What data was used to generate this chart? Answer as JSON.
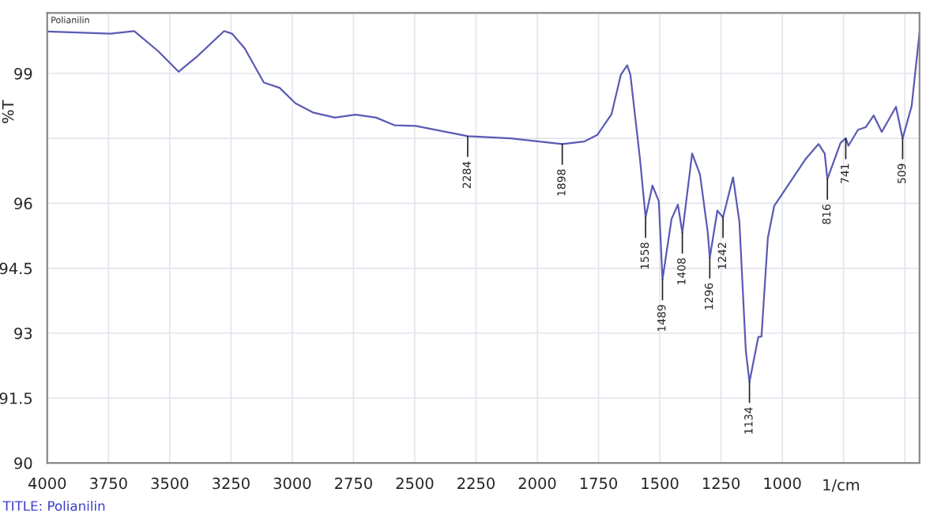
{
  "chart_data": {
    "type": "line",
    "x": [
      4000,
      3903,
      3742,
      3645,
      3548,
      3464,
      3387,
      3278,
      3246,
      3194,
      3116,
      3052,
      2987,
      2916,
      2826,
      2742,
      2658,
      2581,
      2497,
      2284,
      2110,
      1898,
      1807,
      1755,
      1697,
      1659,
      1633,
      1620,
      1581,
      1558,
      1530,
      1504,
      1489,
      1452,
      1426,
      1408,
      1368,
      1336,
      1304,
      1296,
      1265,
      1242,
      1201,
      1175,
      1149,
      1134,
      1098,
      1085,
      1059,
      1033,
      904,
      852,
      827,
      816,
      762,
      741,
      730,
      691,
      659,
      627,
      594,
      536,
      509,
      472,
      440
    ],
    "series": [
      {
        "color": "#5a5ab4",
        "values": [
          99.97,
          99.95,
          99.92,
          99.98,
          99.52,
          99.04,
          99.4,
          99.98,
          99.92,
          99.58,
          98.79,
          98.67,
          98.31,
          98.1,
          97.98,
          98.05,
          97.98,
          97.8,
          97.79,
          97.55,
          97.5,
          97.37,
          97.43,
          97.58,
          98.06,
          98.97,
          99.19,
          98.97,
          97.03,
          95.68,
          96.41,
          96.05,
          94.24,
          95.64,
          95.97,
          95.32,
          97.15,
          96.67,
          95.32,
          94.74,
          95.83,
          95.68,
          96.6,
          95.57,
          92.6,
          91.87,
          92.91,
          92.92,
          95.2,
          95.94,
          97.03,
          97.37,
          97.15,
          96.56,
          97.4,
          97.5,
          97.33,
          97.7,
          97.76,
          98.03,
          97.65,
          98.23,
          97.5,
          98.25,
          99.95
        ]
      }
    ],
    "xlim": [
      4000,
      440
    ],
    "ylim": [
      90,
      100.4
    ],
    "xticks": [
      4000,
      3750,
      3500,
      3250,
      3000,
      2750,
      2500,
      2250,
      2000,
      1750,
      1500,
      1250,
      1000,
      {
        "value": 750,
        "label": null
      },
      {
        "value": 500,
        "label": null
      }
    ],
    "yticks": [
      90,
      91.5,
      93,
      94.5,
      96,
      {
        "value": 97.5,
        "label": null
      },
      99
    ],
    "xlabel": "1/cm",
    "ylabel": "%T",
    "grid": true,
    "annotations": [
      "Polianilin",
      "TITLE: Polianilin",
      {
        "text": "2284",
        "x": 2284,
        "y": 97.55
      },
      {
        "text": "1898",
        "x": 1898,
        "y": 97.37
      },
      {
        "text": "1558",
        "x": 1558,
        "y": 95.68
      },
      {
        "text": "1489",
        "x": 1489,
        "y": 94.24
      },
      {
        "text": "1408",
        "x": 1408,
        "y": 95.32
      },
      {
        "text": "1296",
        "x": 1296,
        "y": 94.74
      },
      {
        "text": "1242",
        "x": 1242,
        "y": 95.68
      },
      {
        "text": "1134",
        "x": 1134,
        "y": 91.87
      },
      {
        "text": "816",
        "x": 816,
        "y": 96.56
      },
      {
        "text": "741",
        "x": 741,
        "y": 97.5
      },
      {
        "text": "509",
        "x": 509,
        "y": 97.5
      }
    ]
  }
}
